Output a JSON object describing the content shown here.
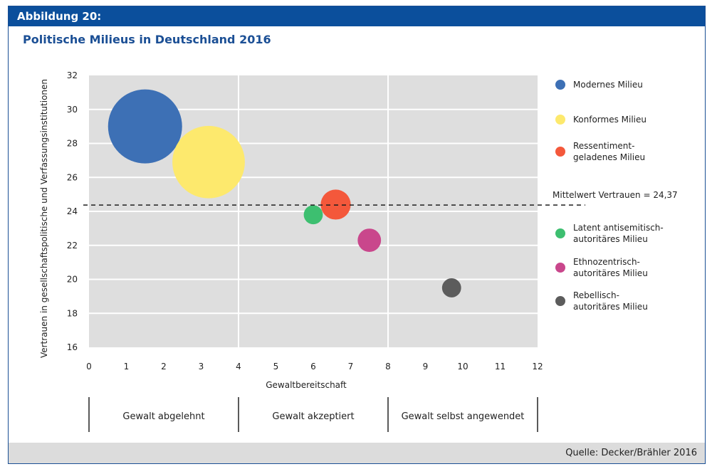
{
  "figure": {
    "label": "Abbildung 20:",
    "source": "Quelle: Decker/Brähler 2016"
  },
  "chart_data": {
    "type": "scatter",
    "title": "Politische Milieus in Deutschland 2016",
    "xlabel": "Gewaltbereitschaft",
    "ylabel": "Vertrauen in gesellschaftspolitische und Verfassungsinstitutionen",
    "xlim": [
      0,
      12
    ],
    "ylim": [
      16,
      32
    ],
    "x_ticks": [
      "0",
      "1",
      "2",
      "3",
      "4",
      "5",
      "6",
      "7",
      "8",
      "9",
      "10",
      "11",
      "12"
    ],
    "y_ticks": [
      "16",
      "18",
      "20",
      "22",
      "24",
      "26",
      "28",
      "30",
      "32"
    ],
    "grid": true,
    "legend_position": "right",
    "mean_line": {
      "value": 24.37,
      "label": "Mittelwert Vertrauen = 24,37"
    },
    "zones": [
      {
        "label": "Gewalt abgelehnt",
        "from": 0,
        "to": 4
      },
      {
        "label": "Gewalt akzeptiert",
        "from": 4,
        "to": 8
      },
      {
        "label": "Gewalt selbst angewendet",
        "from": 8,
        "to": 12
      }
    ],
    "series": [
      {
        "name": "Modernes Milieu",
        "x": 1.5,
        "y": 29.0,
        "size": 30.3,
        "color": "#3d70b5"
      },
      {
        "name": "Konformes Milieu",
        "x": 3.2,
        "y": 26.9,
        "size": 29.0,
        "color": "#fde96d"
      },
      {
        "name": "Ressentiment-geladenes Milieu",
        "x": 6.6,
        "y": 24.4,
        "size": 5.0,
        "color": "#f4583b"
      },
      {
        "name": "Latent antisemitisch-autoritäres Milieu",
        "x": 6.0,
        "y": 23.8,
        "size": 2.0,
        "color": "#3dbf70"
      },
      {
        "name": "Ethnozentrisch-autoritäres Milieu",
        "x": 7.5,
        "y": 22.3,
        "size": 3.0,
        "color": "#c9478c"
      },
      {
        "name": "Rebellisch-autoritäres Milieu",
        "x": 9.7,
        "y": 19.5,
        "size": 2.0,
        "color": "#5c5c5c"
      }
    ],
    "colors": {
      "plot_background": "#dedede",
      "grid": "#ffffff",
      "accent": "#0b4f9c"
    }
  }
}
